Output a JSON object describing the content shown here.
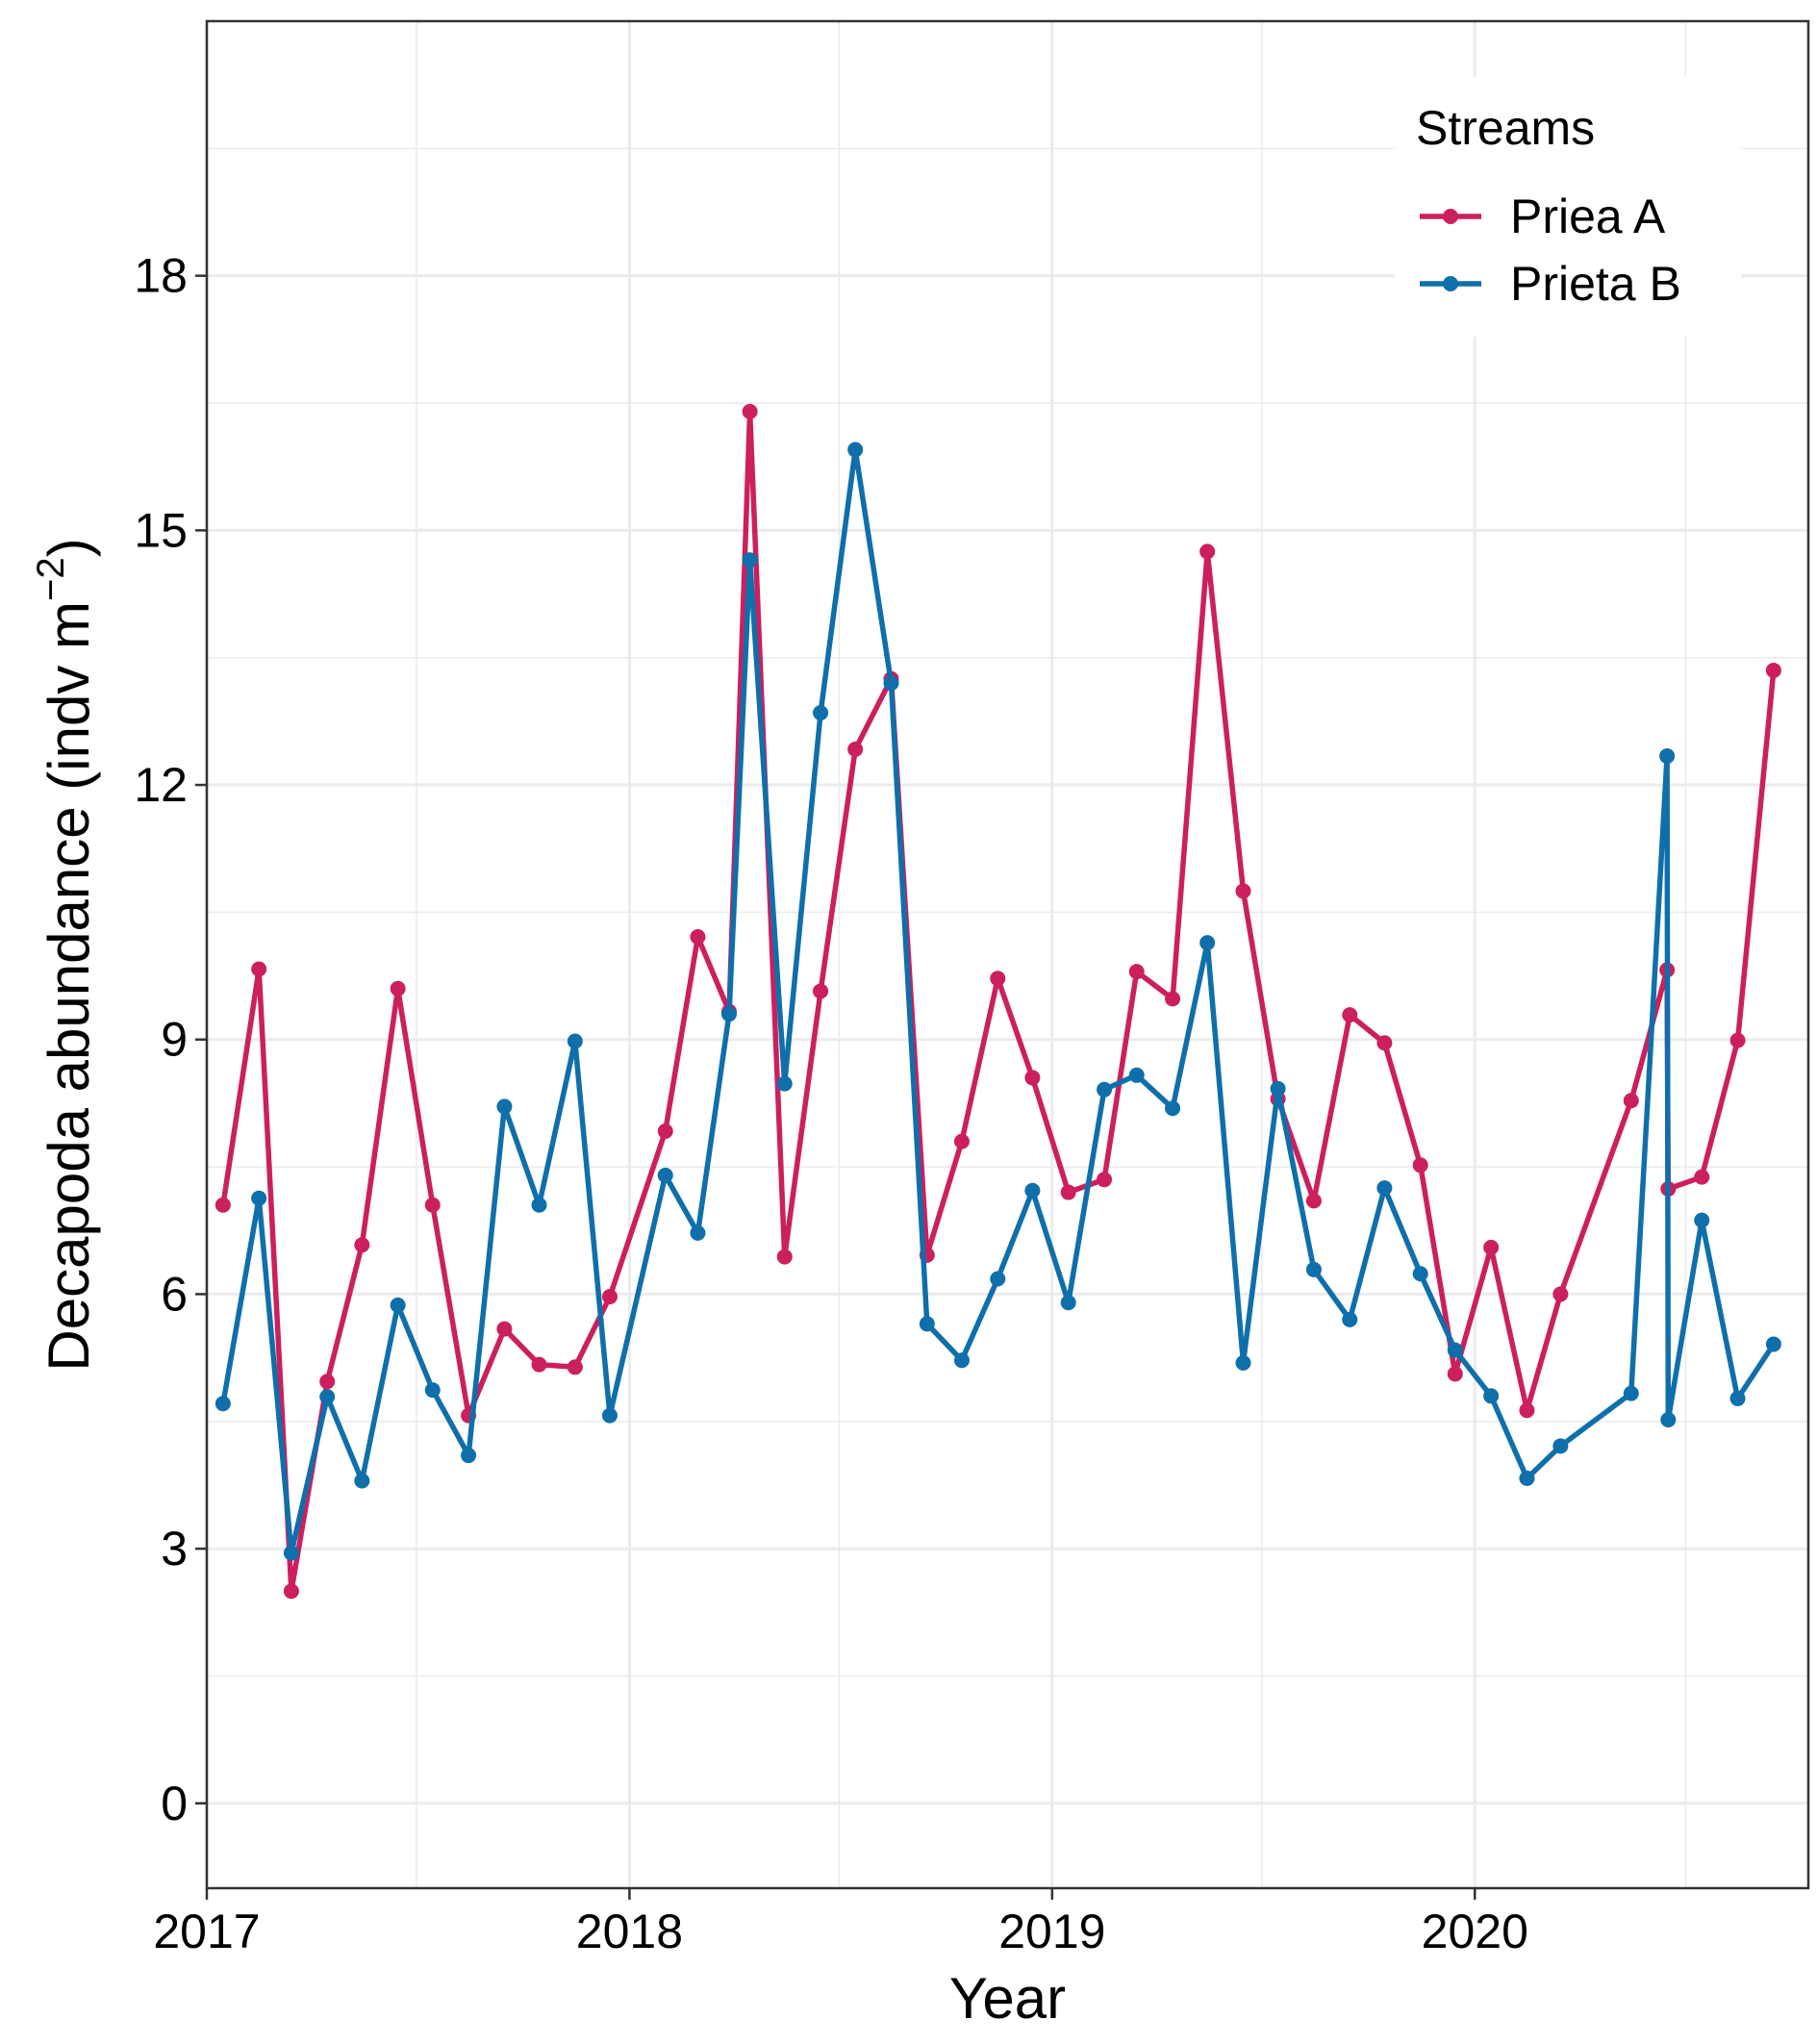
{
  "chart_data": {
    "type": "line",
    "xlabel": "Year",
    "ylabel_main": "Decapoda abundance (indv m",
    "ylabel_sup": "−2",
    "ylabel_tail": ")",
    "x_range": [
      "2017-01-01",
      "2020-10-15"
    ],
    "ylim": [
      -1.0,
      21.0
    ],
    "grid": true,
    "x_ticks": [
      {
        "date": "2017-01-01",
        "label": "2017"
      },
      {
        "date": "2018-01-01",
        "label": "2018"
      },
      {
        "date": "2019-01-01",
        "label": "2019"
      },
      {
        "date": "2020-01-01",
        "label": "2020"
      }
    ],
    "x_minor_ticks": [
      "2017-07-01",
      "2018-07-01",
      "2019-07-01",
      "2020-07-01"
    ],
    "y_ticks": [
      0,
      3,
      6,
      9,
      12,
      15,
      18
    ],
    "y_minor_ticks": [
      1.5,
      4.5,
      7.5,
      10.5,
      13.5,
      16.5,
      19.5
    ],
    "legend": {
      "title": "Streams",
      "position": "top-right"
    },
    "series": [
      {
        "name": "Priea A",
        "color": "#CC1F5E",
        "points": [
          [
            "2017-01-15",
            7.05
          ],
          [
            "2017-02-15",
            9.83
          ],
          [
            "2017-03-15",
            2.5
          ],
          [
            "2017-04-15",
            4.97
          ],
          [
            "2017-05-15",
            6.58
          ],
          [
            "2017-06-15",
            9.6
          ],
          [
            "2017-07-15",
            7.05
          ],
          [
            "2017-08-15",
            4.57
          ],
          [
            "2017-09-15",
            5.59
          ],
          [
            "2017-10-15",
            5.17
          ],
          [
            "2017-11-15",
            5.14
          ],
          [
            "2017-12-15",
            5.97
          ],
          [
            "2018-02-01",
            7.92
          ],
          [
            "2018-03-01",
            10.21
          ],
          [
            "2018-03-28",
            9.33
          ],
          [
            "2018-04-15",
            16.4
          ],
          [
            "2018-05-15",
            6.44
          ],
          [
            "2018-06-15",
            9.57
          ],
          [
            "2018-07-15",
            12.42
          ],
          [
            "2018-08-15",
            13.25
          ],
          [
            "2018-09-15",
            6.46
          ],
          [
            "2018-10-15",
            7.8
          ],
          [
            "2018-11-15",
            9.72
          ],
          [
            "2018-12-15",
            8.55
          ],
          [
            "2019-01-15",
            7.2
          ],
          [
            "2019-02-15",
            7.35
          ],
          [
            "2019-03-15",
            9.8
          ],
          [
            "2019-04-15",
            9.48
          ],
          [
            "2019-05-15",
            14.75
          ],
          [
            "2019-06-15",
            10.75
          ],
          [
            "2019-07-15",
            8.3
          ],
          [
            "2019-08-15",
            7.1
          ],
          [
            "2019-09-15",
            9.29
          ],
          [
            "2019-10-15",
            8.96
          ],
          [
            "2019-11-15",
            7.52
          ],
          [
            "2019-12-15",
            5.06
          ],
          [
            "2020-01-15",
            6.55
          ],
          [
            "2020-02-15",
            4.63
          ],
          [
            "2020-03-15",
            6.0
          ],
          [
            "2020-05-15",
            8.28
          ],
          [
            "2020-06-15",
            9.82
          ],
          [
            "2020-06-16",
            7.24
          ],
          [
            "2020-07-15",
            7.38
          ],
          [
            "2020-08-15",
            8.99
          ],
          [
            "2020-09-15",
            13.35
          ]
        ]
      },
      {
        "name": "Prieta B",
        "color": "#0F6FAA",
        "points": [
          [
            "2017-01-15",
            4.71
          ],
          [
            "2017-02-15",
            7.13
          ],
          [
            "2017-03-15",
            2.95
          ],
          [
            "2017-04-15",
            4.79
          ],
          [
            "2017-05-15",
            3.8
          ],
          [
            "2017-06-15",
            5.87
          ],
          [
            "2017-07-15",
            4.87
          ],
          [
            "2017-08-15",
            4.1
          ],
          [
            "2017-09-15",
            8.21
          ],
          [
            "2017-10-15",
            7.05
          ],
          [
            "2017-11-15",
            8.98
          ],
          [
            "2017-12-15",
            4.57
          ],
          [
            "2018-02-01",
            7.4
          ],
          [
            "2018-03-01",
            6.72
          ],
          [
            "2018-03-28",
            9.3
          ],
          [
            "2018-04-15",
            14.65
          ],
          [
            "2018-05-15",
            8.48
          ],
          [
            "2018-06-15",
            12.85
          ],
          [
            "2018-07-15",
            15.95
          ],
          [
            "2018-08-15",
            13.2
          ],
          [
            "2018-09-15",
            5.65
          ],
          [
            "2018-10-15",
            5.22
          ],
          [
            "2018-11-15",
            6.18
          ],
          [
            "2018-12-15",
            7.22
          ],
          [
            "2019-01-15",
            5.9
          ],
          [
            "2019-02-15",
            8.41
          ],
          [
            "2019-03-15",
            8.58
          ],
          [
            "2019-04-15",
            8.19
          ],
          [
            "2019-05-15",
            10.14
          ],
          [
            "2019-06-15",
            5.19
          ],
          [
            "2019-07-15",
            8.42
          ],
          [
            "2019-08-15",
            6.29
          ],
          [
            "2019-09-15",
            5.7
          ],
          [
            "2019-10-15",
            7.25
          ],
          [
            "2019-11-15",
            6.24
          ],
          [
            "2019-12-15",
            5.34
          ],
          [
            "2020-01-15",
            4.8
          ],
          [
            "2020-02-15",
            3.83
          ],
          [
            "2020-03-15",
            4.21
          ],
          [
            "2020-05-15",
            4.83
          ],
          [
            "2020-06-15",
            12.34
          ],
          [
            "2020-06-16",
            4.52
          ],
          [
            "2020-07-15",
            6.87
          ],
          [
            "2020-08-15",
            4.77
          ],
          [
            "2020-09-15",
            5.41
          ]
        ]
      }
    ]
  }
}
